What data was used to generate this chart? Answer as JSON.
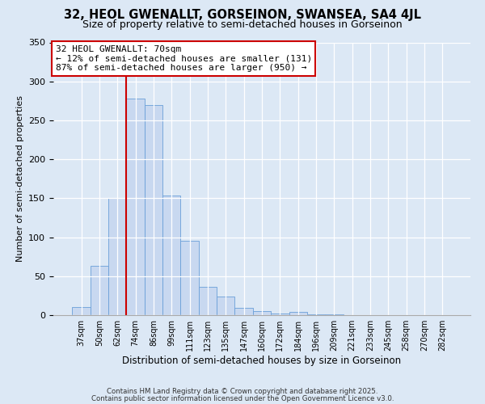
{
  "title": "32, HEOL GWENALLT, GORSEINON, SWANSEA, SA4 4JL",
  "subtitle": "Size of property relative to semi-detached houses in Gorseinon",
  "xlabel": "Distribution of semi-detached houses by size in Gorseinon",
  "ylabel": "Number of semi-detached properties",
  "bin_labels": [
    "37sqm",
    "50sqm",
    "62sqm",
    "74sqm",
    "86sqm",
    "99sqm",
    "111sqm",
    "123sqm",
    "135sqm",
    "147sqm",
    "160sqm",
    "172sqm",
    "184sqm",
    "196sqm",
    "209sqm",
    "221sqm",
    "233sqm",
    "245sqm",
    "258sqm",
    "270sqm",
    "282sqm"
  ],
  "bar_heights": [
    10,
    63,
    150,
    278,
    270,
    153,
    95,
    36,
    24,
    9,
    5,
    2,
    4,
    1,
    1,
    0,
    0,
    0,
    0,
    0,
    0
  ],
  "bar_color": "#c8d8f0",
  "bar_edge_color": "#6a9fd8",
  "vline_color": "#cc0000",
  "vline_x_index": 2.5,
  "annotation_title": "32 HEOL GWENALLT: 70sqm",
  "annotation_line1": "← 12% of semi-detached houses are smaller (131)",
  "annotation_line2": "87% of semi-detached houses are larger (950) →",
  "annotation_box_color": "#ffffff",
  "annotation_box_edge": "#cc0000",
  "ylim": [
    0,
    350
  ],
  "yticks": [
    0,
    50,
    100,
    150,
    200,
    250,
    300,
    350
  ],
  "footer1": "Contains HM Land Registry data © Crown copyright and database right 2025.",
  "footer2": "Contains public sector information licensed under the Open Government Licence v3.0.",
  "background_color": "#dce8f5",
  "plot_background_color": "#dce8f5",
  "title_fontsize": 10.5,
  "subtitle_fontsize": 9
}
